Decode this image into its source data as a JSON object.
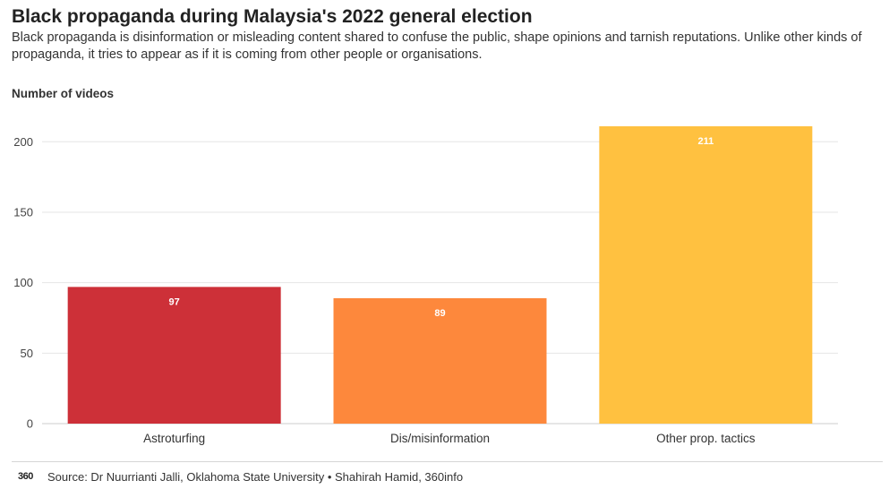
{
  "header": {
    "title": "Black propaganda during Malaysia's 2022 general election",
    "subtitle": "Black propaganda is disinformation or misleading content shared to confuse the public, shape opinions and tarnish reputations. Unlike other kinds of propaganda, it tries to appear as if it is coming from other people or organisations."
  },
  "footer": {
    "logo_text": "360",
    "source": "Source: Dr Nuurrianti Jalli, Oklahoma State University • Shahirah Hamid, 360info"
  },
  "chart_data": {
    "type": "bar",
    "title": "Black propaganda during Malaysia's 2022 general election",
    "ylabel": "Number of videos",
    "xlabel": "",
    "categories": [
      "Astroturfing",
      "Dis/misinformation",
      "Other prop. tactics"
    ],
    "values": [
      97,
      89,
      211
    ],
    "data_labels": [
      "97",
      "89",
      "211"
    ],
    "colors": [
      "#cd3038",
      "#fd883c",
      "#ffc140"
    ],
    "ylim": [
      0,
      211
    ],
    "yticks": [
      0,
      50,
      100,
      150,
      200
    ],
    "grid": true,
    "legend": "none"
  }
}
